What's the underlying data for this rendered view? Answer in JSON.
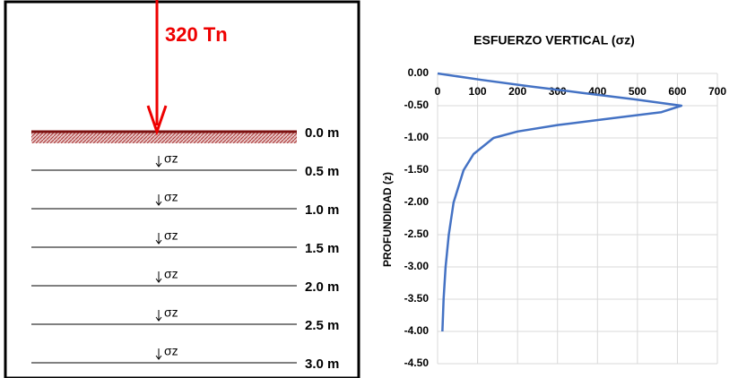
{
  "diagram": {
    "load": "320 Tn",
    "depth_labels": [
      "0.0 m",
      "0.5 m",
      "1.0 m",
      "1.5 m",
      "2.0 m",
      "2.5 m",
      "3.0 m"
    ],
    "sigma_labels": [
      "σz",
      "σz",
      "σz",
      "σz",
      "σz",
      "σz"
    ]
  },
  "chart_data": {
    "type": "line",
    "title": "ESFUERZO VERTICAL (σz)",
    "y_label": "PROFUNDIDAD (z)",
    "color": "#4472c4",
    "grid": true,
    "x": [
      0,
      110,
      230,
      360,
      490,
      610,
      560,
      430,
      300,
      200,
      140,
      90,
      65,
      40,
      28,
      20,
      15,
      12
    ],
    "values": [
      0,
      -0.1,
      -0.2,
      -0.3,
      -0.4,
      -0.5,
      -0.6,
      -0.7,
      -0.8,
      -0.9,
      -1.0,
      -1.25,
      -1.5,
      -2.0,
      -2.5,
      -3.0,
      -3.5,
      -4.0
    ],
    "xlim": [
      0,
      700
    ],
    "xticks": [
      0,
      100,
      200,
      300,
      400,
      500,
      600,
      700
    ],
    "ylim": [
      -4.5,
      0
    ],
    "yticks": [
      {
        "value": 0,
        "label": "0.00"
      },
      {
        "value": -0.5,
        "label": "-0.50"
      },
      {
        "value": -1,
        "label": "-1.00"
      },
      {
        "value": -1.5,
        "label": "-1.50"
      },
      {
        "value": -2,
        "label": "-2.00"
      },
      {
        "value": -2.5,
        "label": "-2.50"
      },
      {
        "value": -3,
        "label": "-3.00"
      },
      {
        "value": -3.5,
        "label": "-3.50"
      },
      {
        "value": -4,
        "label": "-4.00"
      },
      {
        "value": -4.5,
        "label": "-4.50"
      }
    ]
  }
}
